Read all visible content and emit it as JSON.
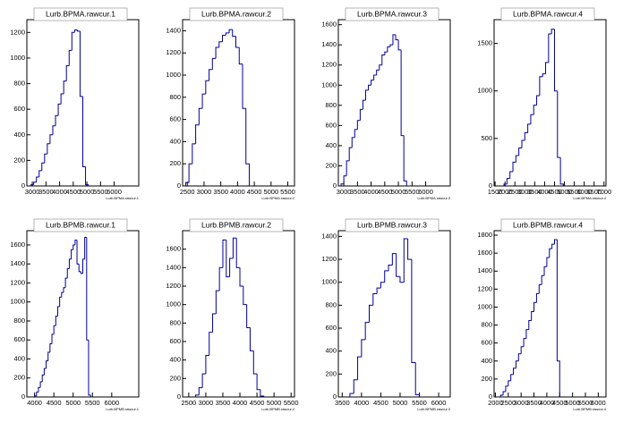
{
  "chart_data": [
    {
      "type": "histogram",
      "title": "Lurb.BPMA.rawcur.1",
      "x_label": "Lurb.BPMA.rawcur.1",
      "color": "#000099",
      "bins": [
        2950,
        3050,
        3150,
        3250,
        3350,
        3450,
        3550,
        3650,
        3750,
        3850,
        3950,
        4050,
        4150,
        4250,
        4350,
        4450,
        4550,
        4650,
        4750,
        4850,
        4950,
        5050
      ],
      "values": [
        10,
        30,
        70,
        120,
        180,
        250,
        330,
        400,
        470,
        550,
        640,
        720,
        820,
        940,
        1060,
        1200,
        1220,
        1210,
        700,
        150,
        10
      ],
      "xlim": [
        2800,
        6900
      ],
      "xticks": [
        3000,
        3500,
        4000,
        4500,
        5000,
        5500,
        6000
      ],
      "ylim": [
        0,
        1300
      ],
      "yticks": [
        0,
        200,
        400,
        600,
        800,
        1000,
        1200
      ]
    },
    {
      "type": "histogram",
      "title": "Lurb.BPMA.rawcur.2",
      "x_label": "Lurb.BPMA.rawcur.2",
      "color": "#000099",
      "bins": [
        2450,
        2550,
        2650,
        2750,
        2850,
        2950,
        3050,
        3150,
        3250,
        3350,
        3450,
        3550,
        3650,
        3750,
        3850,
        3950,
        4050,
        4150,
        4250,
        4350
      ],
      "values": [
        30,
        200,
        380,
        550,
        700,
        830,
        950,
        1050,
        1150,
        1250,
        1300,
        1360,
        1380,
        1410,
        1350,
        1250,
        1100,
        700,
        200
      ],
      "xlim": [
        2360,
        5700
      ],
      "xticks": [
        2500,
        3000,
        3500,
        4000,
        4500,
        5000,
        5500
      ],
      "ylim": [
        0,
        1500
      ],
      "yticks": [
        0,
        200,
        400,
        600,
        800,
        1000,
        1200,
        1400
      ]
    },
    {
      "type": "histogram",
      "title": "Lurb.BPMA.rawcur.3",
      "x_label": "Lurb.BPMA.rawcur.3",
      "color": "#000099",
      "bins": [
        2900,
        3000,
        3100,
        3200,
        3300,
        3400,
        3500,
        3600,
        3700,
        3800,
        3900,
        4000,
        4100,
        4200,
        4300,
        4400,
        4500,
        4600,
        4700,
        4800,
        4900,
        5000,
        5100,
        5200,
        5300
      ],
      "values": [
        20,
        100,
        250,
        380,
        480,
        560,
        650,
        760,
        850,
        950,
        1000,
        1050,
        1100,
        1150,
        1200,
        1300,
        1330,
        1380,
        1400,
        1500,
        1450,
        1350,
        500,
        50
      ],
      "xlim": [
        2800,
        6900
      ],
      "xticks": [
        3000,
        3500,
        4000,
        4500,
        5000,
        5500,
        6000
      ],
      "ylim": [
        0,
        1650
      ],
      "yticks": [
        0,
        200,
        400,
        600,
        800,
        1000,
        1200,
        1400,
        1600
      ]
    },
    {
      "type": "histogram",
      "title": "Lurb.BPMA.rawcur.4",
      "x_label": "Lurb.BPMA.rawcur.4",
      "color": "#000099",
      "bins": [
        1950,
        2100,
        2250,
        2400,
        2550,
        2700,
        2850,
        3000,
        3150,
        3300,
        3450,
        3600,
        3750,
        3900,
        4050,
        4200,
        4350,
        4500,
        4650,
        4800,
        4950
      ],
      "values": [
        20,
        80,
        150,
        250,
        320,
        400,
        480,
        560,
        650,
        750,
        850,
        950,
        1150,
        1180,
        1300,
        1600,
        1650,
        1000,
        300,
        20
      ],
      "xlim": [
        1450,
        7100
      ],
      "xticks": [
        1500,
        2000,
        2500,
        3000,
        3500,
        4000,
        4500,
        5000,
        5500,
        6000,
        6500,
        7000
      ],
      "ylim": [
        0,
        1750
      ],
      "yticks": [
        0,
        500,
        1000,
        1500
      ]
    },
    {
      "type": "histogram",
      "title": "Lurb.BPMB.rawcur.1",
      "x_label": "Lurb.BPMB.rawcur.1",
      "color": "#000099",
      "bins": [
        4000,
        4050,
        4100,
        4150,
        4200,
        4250,
        4300,
        4350,
        4400,
        4450,
        4500,
        4550,
        4600,
        4650,
        4700,
        4750,
        4800,
        4850,
        4900,
        4950,
        5000,
        5050,
        5100,
        5150,
        5200,
        5250,
        5300,
        5350,
        5400,
        5450
      ],
      "values": [
        10,
        50,
        100,
        160,
        230,
        300,
        380,
        470,
        560,
        660,
        750,
        850,
        950,
        1050,
        1100,
        1150,
        1250,
        1350,
        1450,
        1550,
        1600,
        1650,
        1400,
        1320,
        1300,
        1450,
        1680,
        600,
        20
      ],
      "xlim": [
        3800,
        6700
      ],
      "xticks": [
        4000,
        4500,
        5000,
        5500,
        6000
      ],
      "ylim": [
        0,
        1750
      ],
      "yticks": [
        0,
        200,
        400,
        600,
        800,
        1000,
        1200,
        1400,
        1600
      ]
    },
    {
      "type": "histogram",
      "title": "Lurb.BPMB.rawcur.2",
      "x_label": "Lurb.BPMB.rawcur.2",
      "color": "#000099",
      "bins": [
        2700,
        2800,
        2900,
        3000,
        3100,
        3200,
        3300,
        3400,
        3500,
        3600,
        3700,
        3800,
        3900,
        4000,
        4100,
        4200,
        4300,
        4400,
        4500,
        4600,
        4700
      ],
      "values": [
        20,
        100,
        250,
        450,
        700,
        900,
        1150,
        1400,
        1700,
        1300,
        1500,
        1720,
        1400,
        1200,
        1000,
        750,
        500,
        250,
        80,
        10
      ],
      "xlim": [
        2320,
        5600
      ],
      "xticks": [
        2500,
        3000,
        3500,
        4000,
        4500,
        5000,
        5500
      ],
      "ylim": [
        0,
        1800
      ],
      "yticks": [
        0,
        200,
        400,
        600,
        800,
        1000,
        1200,
        1400,
        1600
      ]
    },
    {
      "type": "histogram",
      "title": "Lurb.BPMB.rawcur.3",
      "x_label": "Lurb.BPMB.rawcur.3",
      "color": "#000099",
      "bins": [
        3700,
        3800,
        3900,
        4000,
        4100,
        4200,
        4300,
        4400,
        4500,
        4600,
        4700,
        4800,
        4900,
        5000,
        5100,
        5200,
        5300,
        5400,
        5500
      ],
      "values": [
        30,
        150,
        350,
        500,
        650,
        800,
        900,
        950,
        1000,
        1100,
        1150,
        1250,
        1050,
        1000,
        1380,
        1200,
        300,
        20
      ],
      "xlim": [
        3400,
        6300
      ],
      "xticks": [
        3500,
        4000,
        4500,
        5000,
        5500,
        6000
      ],
      "ylim": [
        0,
        1450
      ],
      "yticks": [
        0,
        200,
        400,
        600,
        800,
        1000,
        1200,
        1400
      ]
    },
    {
      "type": "histogram",
      "title": "Lurb.BPMB.rawcur.4",
      "x_label": "Lurb.BPMB.rawcur.4",
      "color": "#000099",
      "bins": [
        2200,
        2300,
        2400,
        2500,
        2600,
        2700,
        2800,
        2900,
        3000,
        3100,
        3200,
        3300,
        3400,
        3500,
        3600,
        3700,
        3800,
        3900,
        4000,
        4100,
        4200,
        4300,
        4400,
        4500
      ],
      "values": [
        20,
        60,
        120,
        180,
        250,
        320,
        400,
        480,
        560,
        650,
        750,
        850,
        950,
        1050,
        1150,
        1250,
        1350,
        1450,
        1550,
        1650,
        1700,
        1750,
        400
      ],
      "xlim": [
        1950,
        6300
      ],
      "xticks": [
        2000,
        2500,
        3000,
        3500,
        4000,
        4500,
        5000,
        5500,
        6000
      ],
      "ylim": [
        0,
        1850
      ],
      "yticks": [
        0,
        200,
        400,
        600,
        800,
        1000,
        1200,
        1400,
        1600,
        1800
      ]
    }
  ]
}
